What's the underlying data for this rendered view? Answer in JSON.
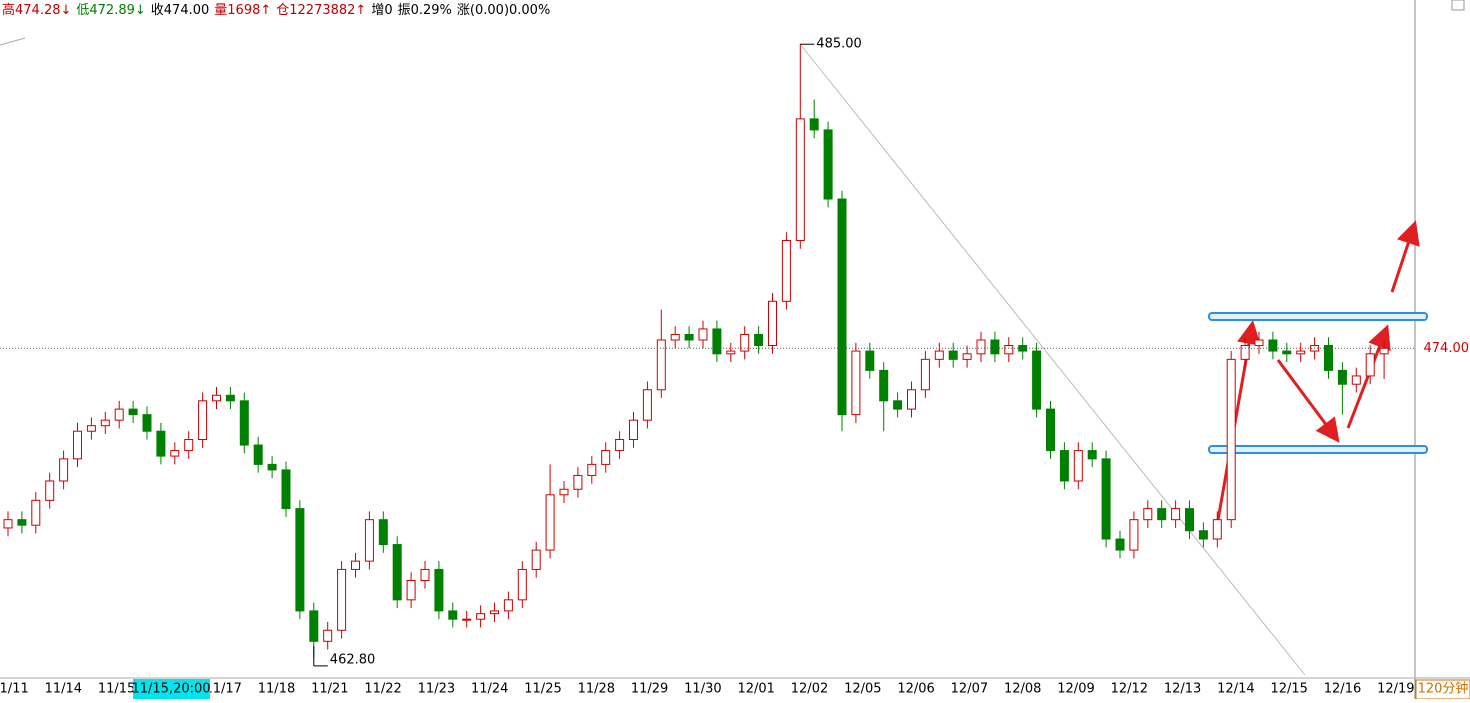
{
  "chart_data": {
    "type": "candlestick",
    "header": [
      {
        "text": "高474.28↓",
        "color": "#c00000"
      },
      {
        "text": "低472.89↓",
        "color": "#008000"
      },
      {
        "text": "收474.00",
        "color": "#000"
      },
      {
        "text": "量1698↑",
        "color": "#c00000"
      },
      {
        "text": "仓12273882↑",
        "color": "#c00000"
      },
      {
        "text": "增0",
        "color": "#000"
      },
      {
        "text": "振0.29%",
        "color": "#000"
      },
      {
        "text": "涨(0.00)0.00%",
        "color": "#000"
      }
    ],
    "period": "120分钟",
    "cursor_label": "11/15,20:00",
    "x_labels": [
      "11/11",
      "11/14",
      "11/15",
      null,
      "11/17",
      "11/18",
      "11/21",
      "11/22",
      "11/23",
      "11/24",
      "11/25",
      "11/28",
      "11/29",
      "11/30",
      "12/01",
      "12/02",
      "12/05",
      "12/06",
      "12/07",
      "12/08",
      "12/09",
      "12/12",
      "12/13",
      "12/14",
      "12/15",
      "12/16",
      "12/19"
    ],
    "ylim": [
      462,
      486.6
    ],
    "last_price": {
      "value": 474,
      "label": "474.00"
    },
    "max_label": {
      "value": 485,
      "label": "485.00"
    },
    "min_label": {
      "value": 462.8,
      "label": "462.80"
    },
    "up_color": "#d00000",
    "down_color": "#008000",
    "open": [
      467.5,
      467.8,
      467.6,
      468.5,
      469.2,
      470.0,
      471.0,
      471.2,
      471.4,
      471.8,
      471.6,
      471.0,
      470.1,
      470.3,
      470.7,
      472.1,
      472.3,
      472.1,
      470.5,
      469.8,
      469.6,
      468.2,
      464.5,
      463.4,
      463.8,
      466.0,
      466.3,
      467.8,
      466.9,
      464.9,
      465.6,
      466.0,
      464.5,
      464.2,
      464.2,
      464.4,
      464.5,
      464.9,
      466.0,
      466.7,
      468.7,
      468.9,
      469.4,
      469.8,
      470.3,
      470.7,
      471.4,
      472.5,
      474.3,
      474.5,
      474.3,
      474.7,
      473.8,
      473.9,
      474.5,
      474.1,
      475.7,
      477.9,
      482.3,
      481.9,
      479.4,
      471.6,
      473.9,
      473.2,
      472.1,
      471.8,
      472.5,
      473.6,
      473.9,
      473.6,
      473.8,
      474.3,
      473.8,
      474.1,
      473.9,
      471.8,
      470.3,
      469.2,
      470.3,
      470.0,
      467.1,
      466.7,
      467.8,
      468.2,
      467.8,
      468.2,
      467.4,
      467.1,
      467.8,
      473.6,
      474.1,
      474.3,
      473.9,
      473.8,
      473.9,
      474.1,
      473.2,
      472.7,
      473.0,
      473.8
    ],
    "high": [
      468.1,
      468.1,
      468.8,
      469.5,
      470.3,
      471.3,
      471.5,
      471.7,
      472.1,
      472.1,
      471.9,
      471.3,
      470.6,
      471.0,
      472.4,
      472.6,
      472.6,
      472.4,
      470.8,
      470.1,
      469.9,
      468.5,
      464.8,
      464.1,
      466.3,
      466.6,
      468.1,
      468.1,
      467.2,
      465.9,
      466.3,
      466.3,
      464.8,
      464.5,
      464.7,
      464.8,
      465.2,
      466.3,
      467.0,
      469.8,
      469.2,
      469.7,
      470.1,
      470.6,
      471.0,
      471.7,
      472.8,
      475.4,
      474.8,
      474.8,
      475.0,
      475.0,
      474.2,
      474.8,
      474.8,
      476.0,
      478.2,
      485.0,
      483.0,
      482.2,
      479.7,
      474.2,
      474.2,
      473.5,
      472.4,
      472.8,
      473.9,
      474.2,
      474.2,
      474.1,
      474.6,
      474.6,
      474.4,
      474.4,
      474.2,
      472.1,
      470.6,
      470.6,
      470.6,
      470.3,
      467.4,
      468.1,
      468.5,
      468.5,
      468.5,
      468.5,
      467.7,
      468.1,
      473.9,
      474.4,
      474.6,
      474.6,
      474.2,
      474.2,
      474.4,
      474.4,
      473.5,
      473.3,
      474.1,
      474.28
    ],
    "low": [
      467.2,
      467.3,
      467.3,
      468.2,
      468.9,
      469.7,
      470.7,
      470.9,
      471.1,
      471.3,
      470.7,
      469.8,
      469.8,
      470.0,
      470.4,
      471.8,
      471.8,
      470.2,
      469.5,
      469.3,
      467.9,
      464.2,
      462.8,
      463.1,
      463.5,
      465.7,
      466.0,
      466.6,
      464.6,
      464.6,
      465.3,
      464.2,
      463.9,
      463.9,
      463.9,
      464.1,
      464.2,
      464.6,
      465.7,
      466.4,
      468.4,
      468.6,
      469.1,
      469.5,
      470.0,
      470.4,
      471.1,
      472.2,
      474.0,
      474.0,
      474.0,
      473.5,
      473.5,
      473.6,
      473.8,
      473.8,
      475.4,
      477.6,
      481.6,
      479.1,
      471.0,
      471.3,
      472.9,
      471.0,
      471.5,
      471.5,
      472.2,
      473.3,
      473.3,
      473.3,
      473.5,
      473.5,
      473.5,
      473.6,
      471.5,
      470.0,
      468.9,
      468.9,
      469.7,
      466.8,
      466.4,
      466.4,
      467.5,
      467.5,
      467.5,
      467.1,
      466.8,
      466.8,
      467.5,
      473.3,
      473.8,
      473.6,
      473.5,
      473.5,
      473.6,
      472.9,
      471.6,
      472.4,
      472.7,
      472.89
    ],
    "close": [
      467.8,
      467.6,
      468.5,
      469.2,
      470.0,
      471.0,
      471.2,
      471.4,
      471.8,
      471.6,
      471.0,
      470.1,
      470.3,
      470.7,
      472.1,
      472.3,
      472.1,
      470.5,
      469.8,
      469.6,
      468.2,
      464.5,
      463.4,
      463.8,
      466.0,
      466.3,
      467.8,
      466.9,
      464.9,
      465.6,
      466.0,
      464.5,
      464.2,
      464.2,
      464.4,
      464.5,
      464.9,
      466.0,
      466.7,
      468.7,
      468.9,
      469.4,
      469.8,
      470.3,
      470.7,
      471.4,
      472.5,
      474.3,
      474.5,
      474.3,
      474.7,
      473.8,
      473.9,
      474.5,
      474.1,
      475.7,
      477.9,
      482.3,
      481.9,
      479.4,
      471.6,
      473.9,
      473.2,
      472.1,
      471.8,
      472.5,
      473.6,
      473.9,
      473.6,
      473.8,
      474.3,
      473.8,
      474.1,
      473.9,
      471.8,
      470.3,
      469.2,
      470.3,
      470.0,
      467.1,
      466.7,
      467.8,
      468.2,
      467.8,
      468.2,
      467.4,
      467.1,
      467.8,
      473.6,
      474.1,
      474.3,
      473.9,
      473.8,
      473.9,
      474.1,
      473.2,
      472.7,
      473.0,
      473.8,
      474.0
    ]
  }
}
